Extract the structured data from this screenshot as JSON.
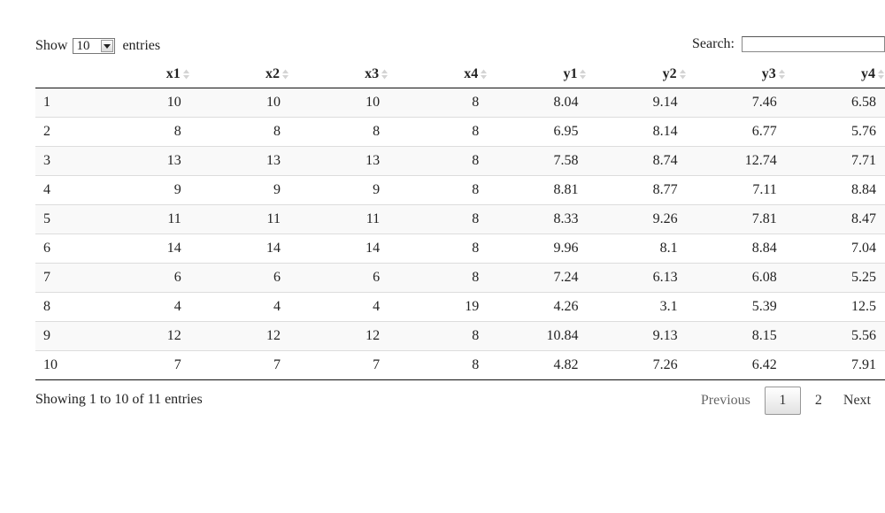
{
  "controls": {
    "show_label": "Show",
    "page_length_value": "10",
    "entries_label": "entries",
    "search_label": "Search:",
    "search_value": ""
  },
  "table": {
    "columns": [
      "",
      "x1",
      "x2",
      "x3",
      "x4",
      "y1",
      "y2",
      "y3",
      "y4"
    ],
    "rows": [
      [
        "1",
        "10",
        "10",
        "10",
        "8",
        "8.04",
        "9.14",
        "7.46",
        "6.58"
      ],
      [
        "2",
        "8",
        "8",
        "8",
        "8",
        "6.95",
        "8.14",
        "6.77",
        "5.76"
      ],
      [
        "3",
        "13",
        "13",
        "13",
        "8",
        "7.58",
        "8.74",
        "12.74",
        "7.71"
      ],
      [
        "4",
        "9",
        "9",
        "9",
        "8",
        "8.81",
        "8.77",
        "7.11",
        "8.84"
      ],
      [
        "5",
        "11",
        "11",
        "11",
        "8",
        "8.33",
        "9.26",
        "7.81",
        "8.47"
      ],
      [
        "6",
        "14",
        "14",
        "14",
        "8",
        "9.96",
        "8.1",
        "8.84",
        "7.04"
      ],
      [
        "7",
        "6",
        "6",
        "6",
        "8",
        "7.24",
        "6.13",
        "6.08",
        "5.25"
      ],
      [
        "8",
        "4",
        "4",
        "4",
        "19",
        "4.26",
        "3.1",
        "5.39",
        "12.5"
      ],
      [
        "9",
        "12",
        "12",
        "12",
        "8",
        "10.84",
        "9.13",
        "8.15",
        "5.56"
      ],
      [
        "10",
        "7",
        "7",
        "7",
        "8",
        "4.82",
        "7.26",
        "6.42",
        "7.91"
      ]
    ]
  },
  "footer": {
    "info": "Showing 1 to 10 of 11 entries",
    "previous_label": "Previous",
    "pages": [
      "1",
      "2"
    ],
    "current_page": "1",
    "next_label": "Next"
  }
}
